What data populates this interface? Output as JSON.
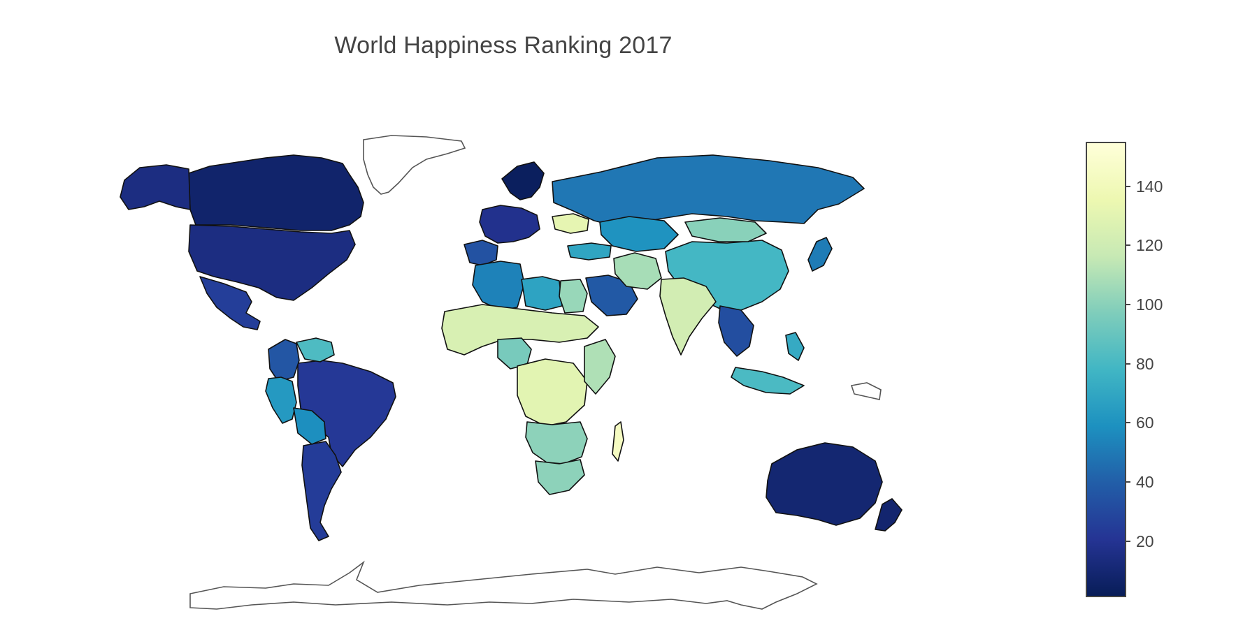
{
  "title": "World Happiness Ranking 2017",
  "colors": {
    "scale": [
      "#081d58",
      "#253494",
      "#225ea8",
      "#1d91c0",
      "#41b6c4",
      "#7fcdbb",
      "#c7e9b4",
      "#edf8b1",
      "#ffffd9"
    ],
    "border": "#111111",
    "unranked_border": "#555555"
  },
  "colorbar": {
    "min": 1,
    "max": 155,
    "ticks": [
      {
        "value": 20,
        "label": "20"
      },
      {
        "value": 40,
        "label": "40"
      },
      {
        "value": 60,
        "label": "60"
      },
      {
        "value": 80,
        "label": "80"
      },
      {
        "value": 100,
        "label": "100"
      },
      {
        "value": 120,
        "label": "120"
      },
      {
        "value": 140,
        "label": "140"
      }
    ]
  },
  "chart_data": {
    "type": "choropleth",
    "title": "World Happiness Ranking 2017",
    "z_range": [
      1,
      155
    ],
    "colorscale": "YlGnBu (reversed)",
    "regions": [
      {
        "name": "Canada",
        "rank": 7
      },
      {
        "name": "United States",
        "rank": 14
      },
      {
        "name": "Alaska",
        "rank": 14
      },
      {
        "name": "Mexico",
        "rank": 25
      },
      {
        "name": "Brazil",
        "rank": 22
      },
      {
        "name": "Argentina",
        "rank": 24
      },
      {
        "name": "Colombia",
        "rank": 36
      },
      {
        "name": "Venezuela",
        "rank": 82
      },
      {
        "name": "Peru",
        "rank": 63
      },
      {
        "name": "Bolivia",
        "rank": 58
      },
      {
        "name": "Russia",
        "rank": 49
      },
      {
        "name": "China",
        "rank": 79
      },
      {
        "name": "Mongolia",
        "rank": 100
      },
      {
        "name": "Kazakhstan",
        "rank": 60
      },
      {
        "name": "India",
        "rank": 122
      },
      {
        "name": "Australia",
        "rank": 9
      },
      {
        "name": "New Zealand",
        "rank": 8
      },
      {
        "name": "Scandinavia",
        "rank": 3
      },
      {
        "name": "Western Europe",
        "rank": 18
      },
      {
        "name": "Iberia",
        "rank": 34
      },
      {
        "name": "Saudi Arabia",
        "rank": 37
      },
      {
        "name": "Turkey",
        "rank": 69
      },
      {
        "name": "Iran",
        "rank": 108
      },
      {
        "name": "Algeria",
        "rank": 53
      },
      {
        "name": "Libya",
        "rank": 68
      },
      {
        "name": "Egypt",
        "rank": 104
      },
      {
        "name": "Sahel",
        "rank": 125
      },
      {
        "name": "Nigeria",
        "rank": 95
      },
      {
        "name": "Central Africa",
        "rank": 130
      },
      {
        "name": "East Africa",
        "rank": 110
      },
      {
        "name": "Southern Africa",
        "rank": 101
      },
      {
        "name": "South Africa",
        "rank": 101
      },
      {
        "name": "Madagascar",
        "rank": 144
      },
      {
        "name": "Southeast Asia",
        "rank": 32
      },
      {
        "name": "Indonesia",
        "rank": 81
      },
      {
        "name": "Japan",
        "rank": 51
      },
      {
        "name": "Philippines",
        "rank": 72
      },
      {
        "name": "Ukraine",
        "rank": 132
      }
    ]
  }
}
